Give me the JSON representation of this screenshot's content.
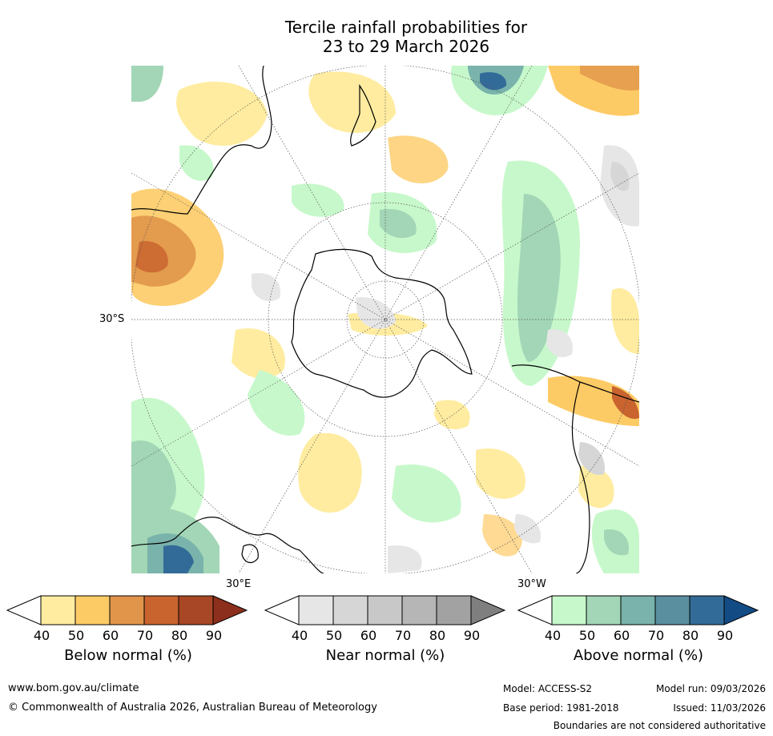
{
  "title": {
    "line1": "Tercile rainfall probabilities for",
    "line2": "23 to 29 March 2026"
  },
  "map": {
    "projection": "south-polar-stereographic",
    "lat_label": "30°S",
    "lon_labels": [
      "30°E",
      "30°W"
    ]
  },
  "colorbars": [
    {
      "label": "Below normal (%)",
      "ticks": [
        "40",
        "50",
        "60",
        "70",
        "80",
        "90"
      ],
      "colors": [
        "#ffffff",
        "#ffeca0",
        "#fdcb66",
        "#e0954a",
        "#c9642f",
        "#a84726",
        "#8c2f1c"
      ]
    },
    {
      "label": "Near normal (%)",
      "ticks": [
        "40",
        "50",
        "60",
        "70",
        "80",
        "90"
      ],
      "colors": [
        "#ffffff",
        "#e6e6e6",
        "#d6d6d6",
        "#c8c8c8",
        "#b6b6b6",
        "#a2a2a2",
        "#7f7f7f"
      ]
    },
    {
      "label": "Above normal (%)",
      "ticks": [
        "40",
        "50",
        "60",
        "70",
        "80",
        "90"
      ],
      "colors": [
        "#ffffff",
        "#c7f8cb",
        "#a2d6b6",
        "#79b3ab",
        "#5a8fa0",
        "#336b98",
        "#134b85"
      ]
    }
  ],
  "footer": {
    "website": "www.bom.gov.au/climate",
    "copyright": "© Commonwealth of Australia 2026, Australian Bureau of Meteorology",
    "model": "Model: ACCESS-S2",
    "base_period": "Base period: 1981-2018",
    "model_run": "Model run: 09/03/2026",
    "issued": "Issued: 11/03/2026",
    "disclaimer": "Boundaries are not considered authoritative"
  }
}
